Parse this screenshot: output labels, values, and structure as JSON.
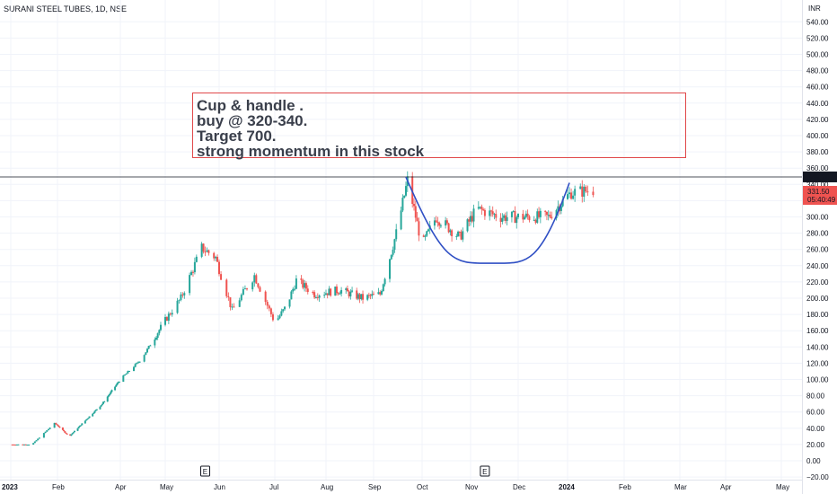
{
  "header": {
    "title": "SURANI STEEL TUBES, 1D, NSE"
  },
  "annotation": {
    "lines": [
      "Cup & handle .",
      "buy @ 320-340.",
      "Target 700.",
      "strong momentum in this stock"
    ]
  },
  "price_axis": {
    "currency": "INR",
    "last_price_label": "349.20",
    "current_price_label": "331.50",
    "countdown_label": "05:40:49"
  },
  "earnings_markers": [
    "E",
    "E"
  ],
  "colors": {
    "up": "#26a69a",
    "down": "#ef5350",
    "cup_curve": "#2f4fc4",
    "annotation_border": "#e0484a",
    "last_price_line": "#131722"
  },
  "chart_data": {
    "type": "candlestick",
    "title": "SURANI STEEL TUBES, 1D, NSE",
    "y_ticks": [
      -20,
      0,
      20,
      40,
      60,
      80,
      100,
      120,
      140,
      160,
      180,
      200,
      220,
      240,
      260,
      280,
      300,
      320,
      340,
      360,
      380,
      400,
      420,
      440,
      460,
      480,
      500,
      520,
      540
    ],
    "ylim": [
      -24,
      548
    ],
    "x_labels": [
      "2023",
      "Feb",
      "Apr",
      "May",
      "Jun",
      "Jul",
      "Aug",
      "Sep",
      "Oct",
      "Nov",
      "Dec",
      "2024",
      "Feb",
      "Mar",
      "Apr",
      "May"
    ],
    "price_path": [
      {
        "date": "2023-01-02",
        "price": 20
      },
      {
        "date": "2023-01-15",
        "price": 20
      },
      {
        "date": "2023-01-30",
        "price": 46
      },
      {
        "date": "2023-02-12",
        "price": 30
      },
      {
        "date": "2023-03-15",
        "price": 70
      },
      {
        "date": "2023-04-15",
        "price": 125
      },
      {
        "date": "2023-05-10",
        "price": 200
      },
      {
        "date": "2023-05-22",
        "price": 262
      },
      {
        "date": "2023-05-30",
        "price": 250
      },
      {
        "date": "2023-06-08",
        "price": 185
      },
      {
        "date": "2023-06-20",
        "price": 228
      },
      {
        "date": "2023-07-01",
        "price": 170
      },
      {
        "date": "2023-07-08",
        "price": 190
      },
      {
        "date": "2023-07-14",
        "price": 222
      },
      {
        "date": "2023-07-25",
        "price": 205
      },
      {
        "date": "2023-08-10",
        "price": 210
      },
      {
        "date": "2023-08-25",
        "price": 200
      },
      {
        "date": "2023-09-05",
        "price": 205
      },
      {
        "date": "2023-09-15",
        "price": 280
      },
      {
        "date": "2023-09-22",
        "price": 345
      },
      {
        "date": "2023-10-01",
        "price": 265
      },
      {
        "date": "2023-10-10",
        "price": 300
      },
      {
        "date": "2023-10-25",
        "price": 275
      },
      {
        "date": "2023-11-05",
        "price": 310
      },
      {
        "date": "2023-11-20",
        "price": 300
      },
      {
        "date": "2023-12-05",
        "price": 300
      },
      {
        "date": "2023-12-20",
        "price": 300
      },
      {
        "date": "2024-01-03",
        "price": 330
      },
      {
        "date": "2024-01-15",
        "price": 333
      }
    ],
    "drawings": {
      "last_price_line": 349.2,
      "cup": {
        "start": {
          "date": "2023-09-21",
          "price": 349
        },
        "bottom": {
          "date": "2023-11-15",
          "price": 243
        },
        "end": {
          "date": "2024-01-02",
          "price": 342
        }
      }
    }
  }
}
